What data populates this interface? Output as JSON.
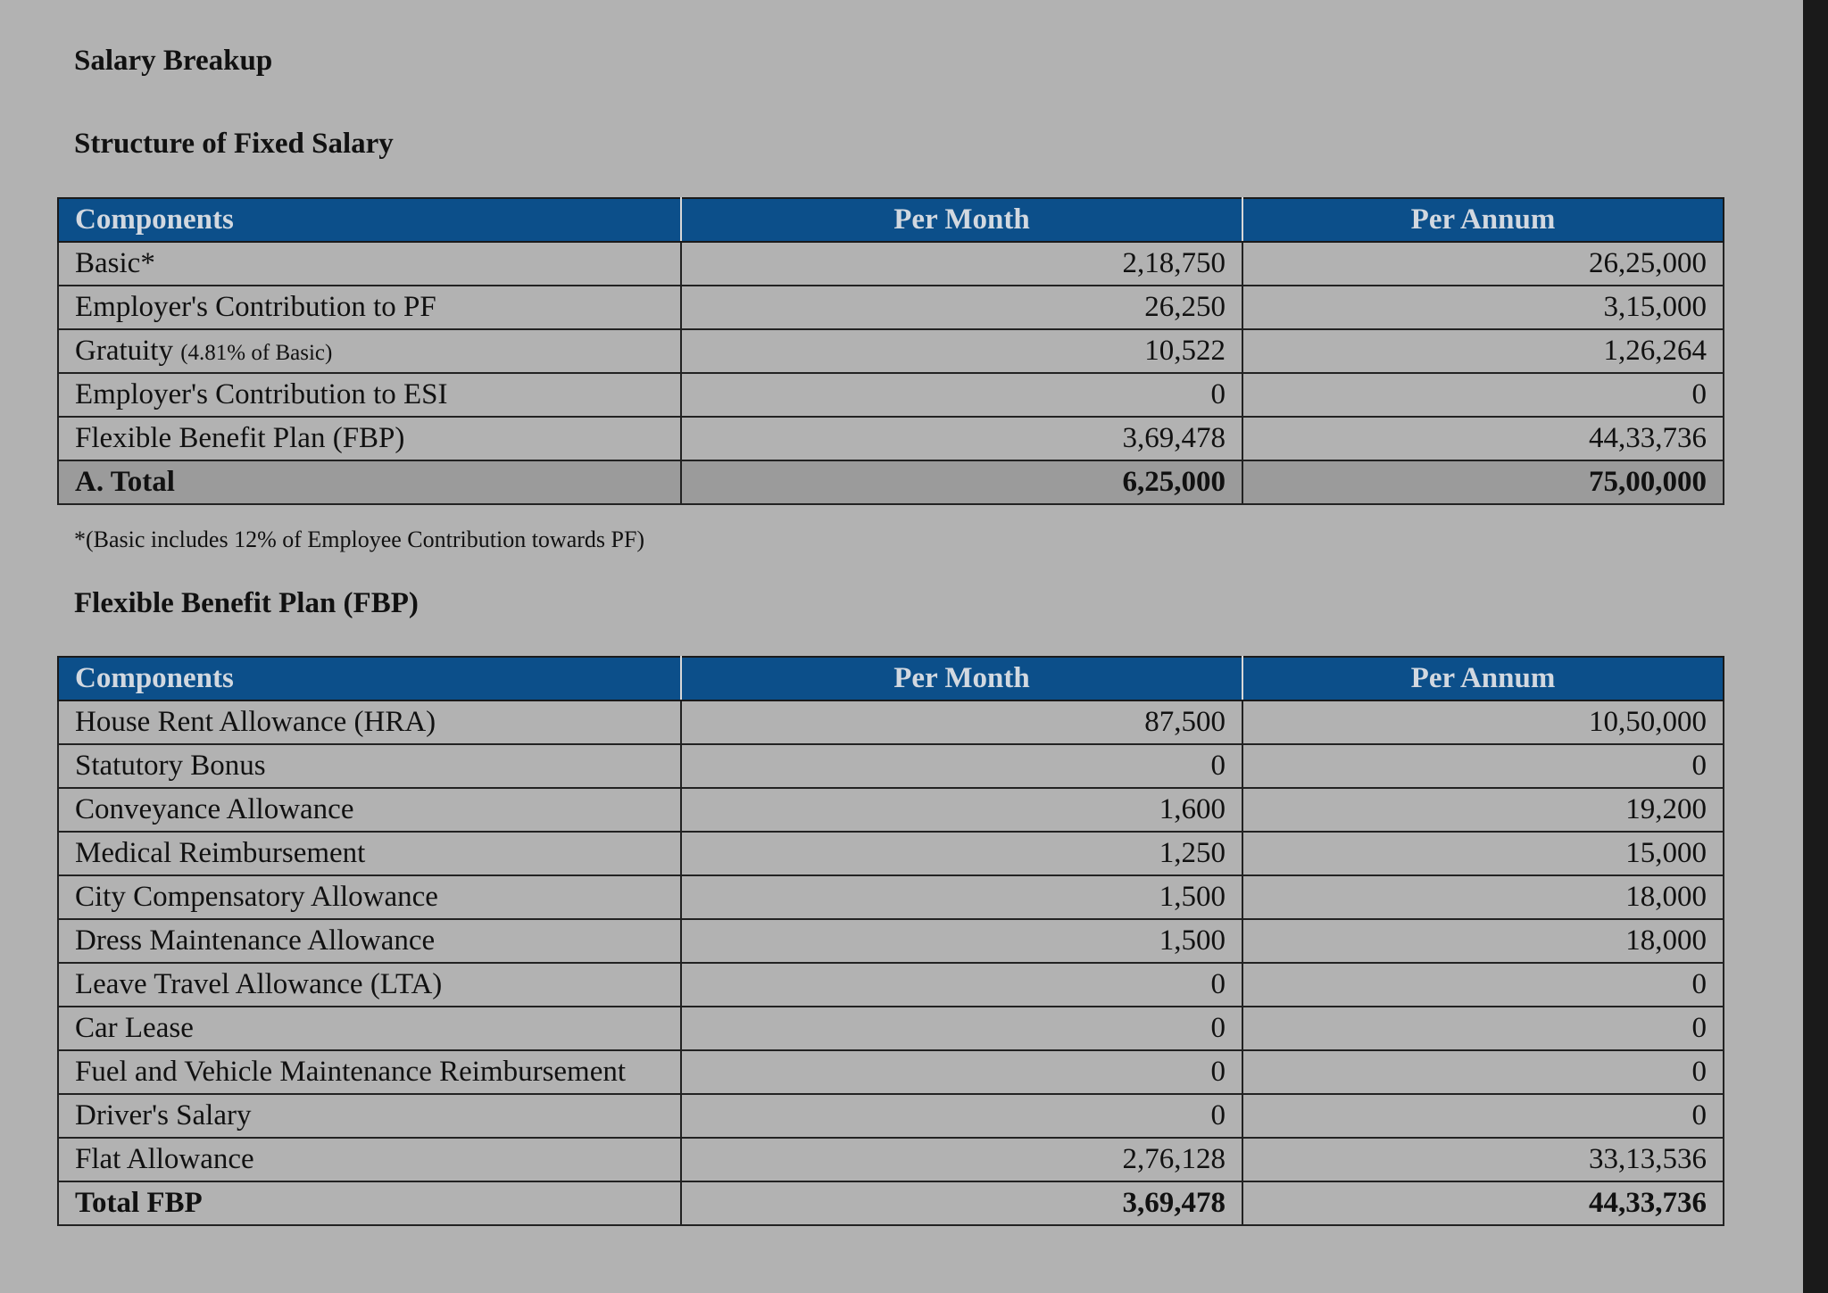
{
  "document": {
    "title": "Salary Breakup",
    "fixed_section_heading": "Structure of Fixed Salary",
    "fbp_section_heading": "Flexible Benefit Plan (FBP)",
    "footnote": "*(Basic includes 12% of Employee Contribution towards PF)"
  },
  "columns": {
    "components": "Components",
    "per_month": "Per Month",
    "per_annum": "Per Annum"
  },
  "fixed_salary": {
    "rows": [
      {
        "label": "Basic*",
        "note": "",
        "per_month": "2,18,750",
        "per_annum": "26,25,000"
      },
      {
        "label": "Employer's Contribution to PF",
        "note": "",
        "per_month": "26,250",
        "per_annum": "3,15,000"
      },
      {
        "label": "Gratuity",
        "note": "(4.81% of Basic)",
        "per_month": "10,522",
        "per_annum": "1,26,264"
      },
      {
        "label": "Employer's Contribution to ESI",
        "note": "",
        "per_month": "0",
        "per_annum": "0"
      },
      {
        "label": "Flexible Benefit Plan (FBP)",
        "note": "",
        "per_month": "3,69,478",
        "per_annum": "44,33,736"
      }
    ],
    "total": {
      "label": "A. Total",
      "per_month": "6,25,000",
      "per_annum": "75,00,000"
    }
  },
  "fbp": {
    "rows": [
      {
        "label": "House Rent Allowance (HRA)",
        "per_month": "87,500",
        "per_annum": "10,50,000"
      },
      {
        "label": "Statutory Bonus",
        "per_month": "0",
        "per_annum": "0"
      },
      {
        "label": "Conveyance Allowance",
        "per_month": "1,600",
        "per_annum": "19,200"
      },
      {
        "label": "Medical Reimbursement",
        "per_month": "1,250",
        "per_annum": "15,000"
      },
      {
        "label": "City Compensatory Allowance",
        "per_month": "1,500",
        "per_annum": "18,000"
      },
      {
        "label": "Dress Maintenance Allowance",
        "per_month": "1,500",
        "per_annum": "18,000"
      },
      {
        "label": "Leave Travel Allowance (LTA)",
        "per_month": "0",
        "per_annum": "0"
      },
      {
        "label": "Car Lease",
        "per_month": "0",
        "per_annum": "0"
      },
      {
        "label": "Fuel and Vehicle Maintenance Reimbursement",
        "per_month": "0",
        "per_annum": "0"
      },
      {
        "label": "Driver's Salary",
        "per_month": "0",
        "per_annum": "0"
      },
      {
        "label": "Flat Allowance",
        "per_month": "2,76,128",
        "per_annum": "33,13,536"
      }
    ],
    "total": {
      "label": "Total FBP",
      "per_month": "3,69,478",
      "per_annum": "44,33,736"
    }
  }
}
